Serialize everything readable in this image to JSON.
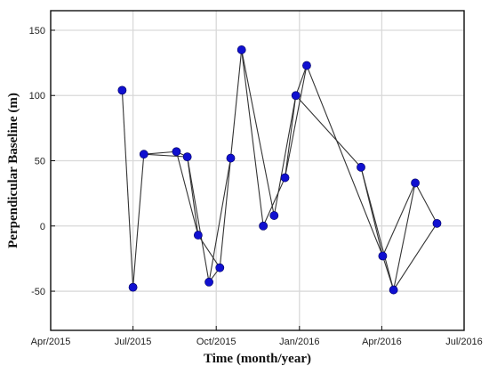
{
  "chart_data": {
    "type": "scatter",
    "title": "",
    "xlabel": "Time (month/year)",
    "ylabel": "Perpendicular Baseline (m)",
    "x_ticks": [
      "Apr/2015",
      "Jul/2015",
      "Oct/2015",
      "Jan/2016",
      "Apr/2016",
      "Jul/2016"
    ],
    "x_tick_dates": [
      "2015-04-01",
      "2015-07-01",
      "2015-10-01",
      "2016-01-01",
      "2016-04-01",
      "2016-07-01"
    ],
    "xlim": [
      "2015-04-01",
      "2016-07-01"
    ],
    "y_ticks": [
      -50,
      0,
      50,
      100,
      150
    ],
    "ylim": [
      -80,
      165
    ],
    "grid": true,
    "marker_color": "#1010d0",
    "line_color": "#333333",
    "points": [
      {
        "id": 0,
        "date": "2015-06-19",
        "y": 104
      },
      {
        "id": 1,
        "date": "2015-07-01",
        "y": -47
      },
      {
        "id": 2,
        "date": "2015-07-13",
        "y": 55
      },
      {
        "id": 3,
        "date": "2015-08-18",
        "y": 57
      },
      {
        "id": 4,
        "date": "2015-08-30",
        "y": 53
      },
      {
        "id": 5,
        "date": "2015-09-11",
        "y": -7
      },
      {
        "id": 6,
        "date": "2015-09-23",
        "y": -43
      },
      {
        "id": 7,
        "date": "2015-10-05",
        "y": -32
      },
      {
        "id": 8,
        "date": "2015-10-17",
        "y": 52
      },
      {
        "id": 9,
        "date": "2015-10-29",
        "y": 135
      },
      {
        "id": 10,
        "date": "2015-11-22",
        "y": 0
      },
      {
        "id": 11,
        "date": "2015-12-04",
        "y": 8
      },
      {
        "id": 12,
        "date": "2015-12-16",
        "y": 37
      },
      {
        "id": 13,
        "date": "2015-12-28",
        "y": 100
      },
      {
        "id": 14,
        "date": "2016-01-09",
        "y": 123
      },
      {
        "id": 15,
        "date": "2016-03-09",
        "y": 45
      },
      {
        "id": 16,
        "date": "2016-04-02",
        "y": -23
      },
      {
        "id": 17,
        "date": "2016-04-14",
        "y": -49
      },
      {
        "id": 18,
        "date": "2016-05-08",
        "y": 33
      },
      {
        "id": 19,
        "date": "2016-06-01",
        "y": 2
      }
    ],
    "edges": [
      [
        0,
        1
      ],
      [
        1,
        2
      ],
      [
        2,
        3
      ],
      [
        2,
        4
      ],
      [
        3,
        4
      ],
      [
        3,
        5
      ],
      [
        4,
        5
      ],
      [
        4,
        6
      ],
      [
        5,
        7
      ],
      [
        6,
        7
      ],
      [
        6,
        8
      ],
      [
        7,
        8
      ],
      [
        8,
        9
      ],
      [
        9,
        10
      ],
      [
        9,
        11
      ],
      [
        10,
        12
      ],
      [
        11,
        13
      ],
      [
        12,
        13
      ],
      [
        12,
        14
      ],
      [
        13,
        14
      ],
      [
        13,
        15
      ],
      [
        14,
        16
      ],
      [
        15,
        16
      ],
      [
        15,
        17
      ],
      [
        16,
        17
      ],
      [
        16,
        18
      ],
      [
        17,
        18
      ],
      [
        17,
        19
      ],
      [
        18,
        19
      ]
    ]
  }
}
